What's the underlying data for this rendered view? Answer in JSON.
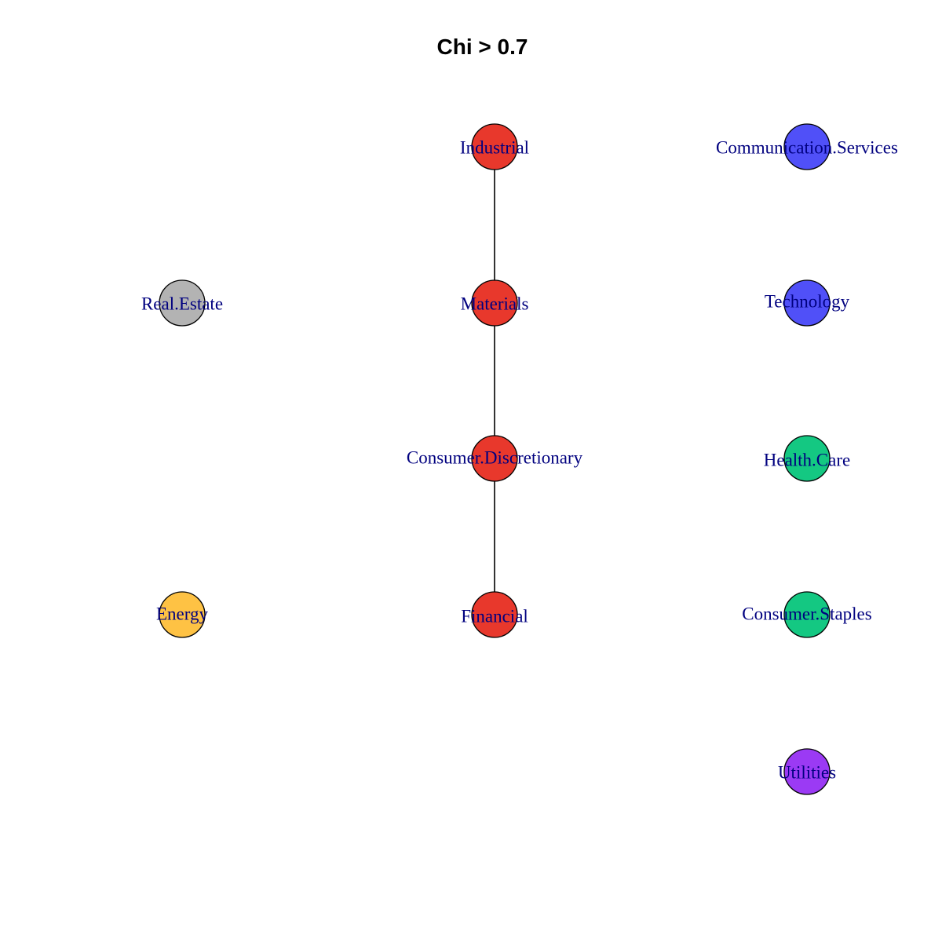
{
  "title": "Chi > 0.7",
  "colors": {
    "red": "#e8382c",
    "blue": "#5050f8",
    "gray": "#b3b3b3",
    "green": "#14c882",
    "yellow": "#fec244",
    "purple": "#9b3af4",
    "label": "#00007f",
    "edge": "#000000"
  },
  "nodes": [
    {
      "id": "industrial",
      "label": "Industrial",
      "color": "red"
    },
    {
      "id": "communication-services",
      "label": "Communication.Services",
      "color": "blue"
    },
    {
      "id": "real-estate",
      "label": "Real.Estate",
      "color": "gray"
    },
    {
      "id": "materials",
      "label": "Materials",
      "color": "red"
    },
    {
      "id": "technology",
      "label": "Technology",
      "color": "blue"
    },
    {
      "id": "consumer-discretionary",
      "label": "Consumer.Discretionary",
      "color": "red"
    },
    {
      "id": "health-care",
      "label": "Health.Care",
      "color": "green"
    },
    {
      "id": "energy",
      "label": "Energy",
      "color": "yellow"
    },
    {
      "id": "financial",
      "label": "Financial",
      "color": "red"
    },
    {
      "id": "consumer-staples",
      "label": "Consumer.Staples",
      "color": "green"
    },
    {
      "id": "utilities",
      "label": "Utilities",
      "color": "purple"
    }
  ],
  "edges": [
    {
      "from": "industrial",
      "to": "materials"
    },
    {
      "from": "materials",
      "to": "consumer-discretionary"
    },
    {
      "from": "consumer-discretionary",
      "to": "financial"
    }
  ]
}
